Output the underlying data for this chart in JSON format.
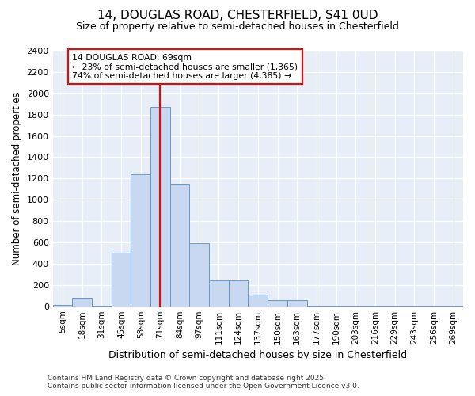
{
  "title1": "14, DOUGLAS ROAD, CHESTERFIELD, S41 0UD",
  "title2": "Size of property relative to semi-detached houses in Chesterfield",
  "xlabel": "Distribution of semi-detached houses by size in Chesterfield",
  "ylabel": "Number of semi-detached properties",
  "bin_labels": [
    "5sqm",
    "18sqm",
    "31sqm",
    "45sqm",
    "58sqm",
    "71sqm",
    "84sqm",
    "97sqm",
    "111sqm",
    "124sqm",
    "137sqm",
    "150sqm",
    "163sqm",
    "177sqm",
    "190sqm",
    "203sqm",
    "216sqm",
    "229sqm",
    "243sqm",
    "256sqm",
    "269sqm"
  ],
  "bin_values": [
    10,
    80,
    5,
    500,
    1240,
    1870,
    1150,
    590,
    245,
    245,
    110,
    60,
    60,
    5,
    5,
    5,
    5,
    5,
    5,
    5,
    5
  ],
  "bar_color": "#c8d8f0",
  "bar_edge_color": "#6699cc",
  "vline_x": 5,
  "vline_color": "red",
  "annotation_title": "14 DOUGLAS ROAD: 69sqm",
  "annotation_line1": "← 23% of semi-detached houses are smaller (1,365)",
  "annotation_line2": "74% of semi-detached houses are larger (4,385) →",
  "ylim": [
    0,
    2400
  ],
  "yticks": [
    0,
    200,
    400,
    600,
    800,
    1000,
    1200,
    1400,
    1600,
    1800,
    2000,
    2200,
    2400
  ],
  "footer1": "Contains HM Land Registry data © Crown copyright and database right 2025.",
  "footer2": "Contains public sector information licensed under the Open Government Licence v3.0.",
  "fig_bg_color": "#ffffff",
  "plot_bg_color": "#e8eef8"
}
